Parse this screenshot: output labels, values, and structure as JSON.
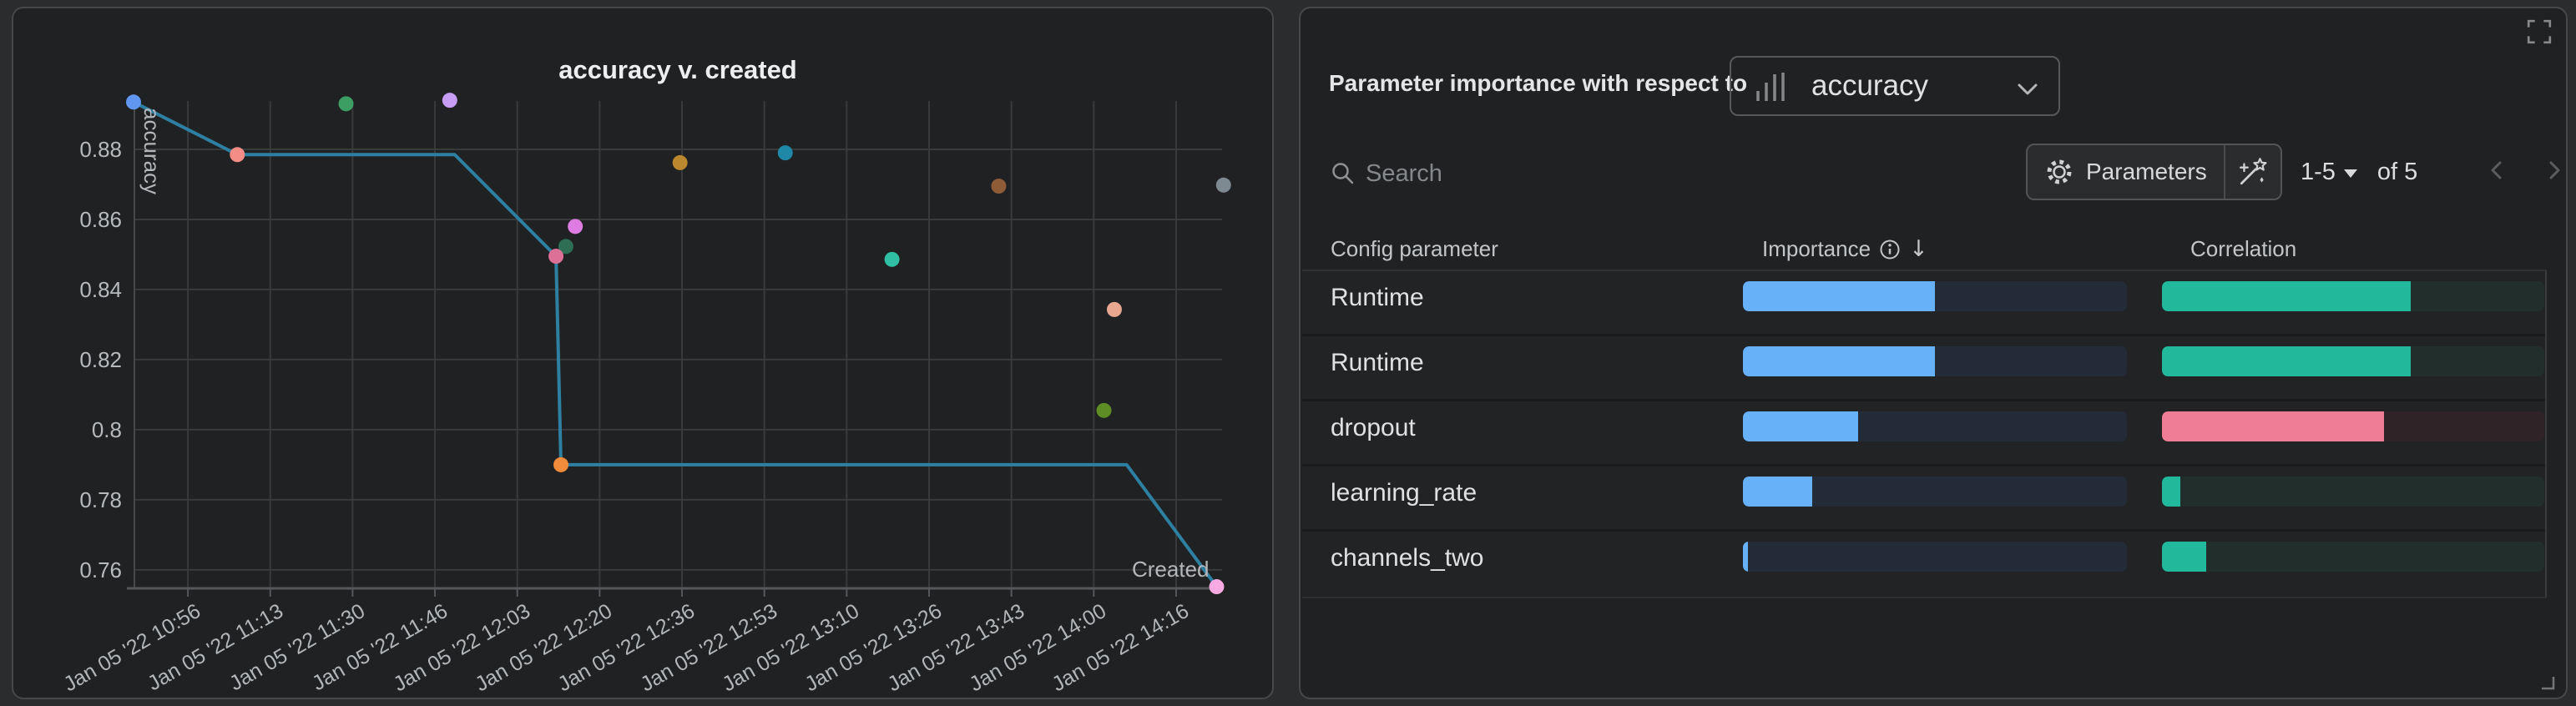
{
  "chart_data": {
    "type": "scatter+line",
    "title": "accuracy v. created",
    "xlabel": "Created",
    "ylabel": "accuracy",
    "grid": true,
    "x_unit_note": "minutes after Jan 05 '22 10:56",
    "x_range": [
      -11,
      209.3
    ],
    "y_range": [
      0.8938,
      0.7545
    ],
    "x_ticks": [
      {
        "label": "Jan 05 '22 10:56",
        "t": 0
      },
      {
        "label": "Jan 05 '22 11:13",
        "t": 16.67
      },
      {
        "label": "Jan 05 '22 11:30",
        "t": 33.33
      },
      {
        "label": "Jan 05 '22 11:46",
        "t": 50
      },
      {
        "label": "Jan 05 '22 12:03",
        "t": 66.67
      },
      {
        "label": "Jan 05 '22 12:20",
        "t": 83.33
      },
      {
        "label": "Jan 05 '22 12:36",
        "t": 100
      },
      {
        "label": "Jan 05 '22 12:53",
        "t": 116.67
      },
      {
        "label": "Jan 05 '22 13:10",
        "t": 133.33
      },
      {
        "label": "Jan 05 '22 13:26",
        "t": 150
      },
      {
        "label": "Jan 05 '22 13:43",
        "t": 166.67
      },
      {
        "label": "Jan 05 '22 14:00",
        "t": 183.33
      },
      {
        "label": "Jan 05 '22 14:16",
        "t": 200
      }
    ],
    "y_ticks": [
      {
        "label": "0.88",
        "v": 0.88
      },
      {
        "label": "0.86",
        "v": 0.86
      },
      {
        "label": "0.84",
        "v": 0.84
      },
      {
        "label": "0.82",
        "v": 0.82
      },
      {
        "label": "0.8",
        "v": 0.8
      },
      {
        "label": "0.78",
        "v": 0.78
      },
      {
        "label": "0.76",
        "v": 0.76
      }
    ],
    "line": {
      "color": "#2e80a3",
      "vertices": [
        [
          -11,
          0.8935
        ],
        [
          10,
          0.8785
        ],
        [
          54,
          0.8785
        ],
        [
          74.5,
          0.8495
        ],
        [
          75.5,
          0.79
        ],
        [
          190,
          0.79
        ],
        [
          208.2,
          0.7552
        ]
      ]
    },
    "points": [
      {
        "t": -11,
        "v": 0.8935,
        "color": "#6095f0"
      },
      {
        "t": 10,
        "v": 0.8785,
        "color": "#f48d85"
      },
      {
        "t": 32,
        "v": 0.893,
        "color": "#3d9e63"
      },
      {
        "t": 53,
        "v": 0.894,
        "color": "#c79df3"
      },
      {
        "t": 78.4,
        "v": 0.858,
        "color": "#df7ce4"
      },
      {
        "t": 76.5,
        "v": 0.8523,
        "color": "#2e6e55"
      },
      {
        "t": 74.5,
        "v": 0.8495,
        "color": "#dd7096"
      },
      {
        "t": 75.5,
        "v": 0.79,
        "color": "#f08c3b"
      },
      {
        "t": 99.6,
        "v": 0.8762,
        "color": "#bb872f"
      },
      {
        "t": 120.9,
        "v": 0.879,
        "color": "#1f88a7"
      },
      {
        "t": 142.5,
        "v": 0.8486,
        "color": "#30bfa2"
      },
      {
        "t": 164.1,
        "v": 0.8695,
        "color": "#8f5c38"
      },
      {
        "t": 187.5,
        "v": 0.8343,
        "color": "#e8a78f"
      },
      {
        "t": 185.4,
        "v": 0.8055,
        "color": "#5e8d26"
      },
      {
        "t": 209.6,
        "v": 0.8698,
        "color": "#7e8a92"
      },
      {
        "t": 208.2,
        "v": 0.7552,
        "color": "#f7a9e2"
      }
    ],
    "axis_color": "#54565a",
    "grid_color": "#393a3c"
  },
  "importance_panel": {
    "title": "Parameter importance with respect to",
    "metric_selector": {
      "value": "accuracy",
      "icon": "bar-chart-icon"
    },
    "search": {
      "placeholder": "Search"
    },
    "parameters_button": "Parameters",
    "pagination": {
      "range": "1-5",
      "of": "of 5"
    },
    "columns": [
      "Config parameter",
      "Importance",
      "Correlation"
    ],
    "sort_icon": "↓",
    "colors": {
      "importance_fill": "#67b1f9",
      "importance_track": "#232b38"
    },
    "rows": [
      {
        "param": "Runtime",
        "importance_pct": 50,
        "correlation_pct": 65,
        "correlation_color": "#21b89b",
        "correlation_track": "#212e2b"
      },
      {
        "param": "Runtime",
        "importance_pct": 50,
        "correlation_pct": 65,
        "correlation_color": "#21b89b",
        "correlation_track": "#212e2b"
      },
      {
        "param": "dropout",
        "importance_pct": 30,
        "correlation_pct": 58,
        "correlation_color": "#ef7d96",
        "correlation_track": "#2f2327"
      },
      {
        "param": "learning_rate",
        "importance_pct": 18,
        "correlation_pct": 4.8,
        "correlation_color": "#21b89b",
        "correlation_track": "#212e2b"
      },
      {
        "param": "channels_two",
        "importance_pct": 1.3,
        "correlation_pct": 11.5,
        "correlation_color": "#21b89b",
        "correlation_track": "#212e2b"
      }
    ]
  }
}
